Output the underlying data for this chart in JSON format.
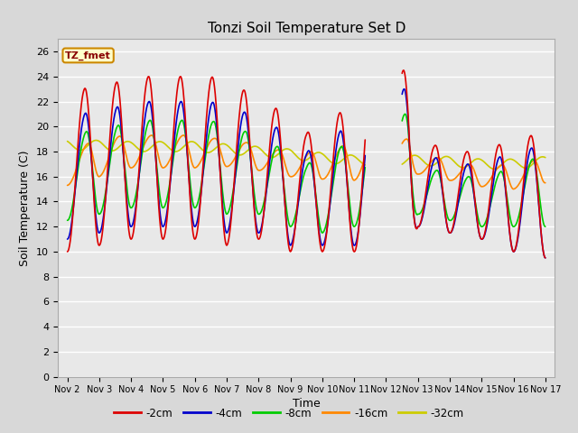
{
  "title": "Tonzi Soil Temperature Set D",
  "xlabel": "Time",
  "ylabel": "Soil Temperature (C)",
  "legend_label": "TZ_fmet",
  "series_labels": [
    "-2cm",
    "-4cm",
    "-8cm",
    "-16cm",
    "-32cm"
  ],
  "series_colors": [
    "#dd0000",
    "#0000cc",
    "#00cc00",
    "#ff8800",
    "#cccc00"
  ],
  "x_tick_labels": [
    "Nov 2",
    "Nov 3",
    "Nov 4",
    "Nov 5",
    "Nov 6",
    "Nov 7",
    "Nov 8",
    "Nov 9",
    "Nov 10",
    "Nov 11",
    "Nov 12",
    "Nov 13",
    "Nov 14",
    "Nov 15",
    "Nov 16",
    "Nov 17"
  ],
  "ylim": [
    0,
    27
  ],
  "yticks": [
    0,
    2,
    4,
    6,
    8,
    10,
    12,
    14,
    16,
    18,
    20,
    22,
    24,
    26
  ],
  "bg_color": "#d8d8d8",
  "plot_bg_color": "#e8e8e8",
  "grid_color": "#ffffff",
  "line_width": 1.2
}
